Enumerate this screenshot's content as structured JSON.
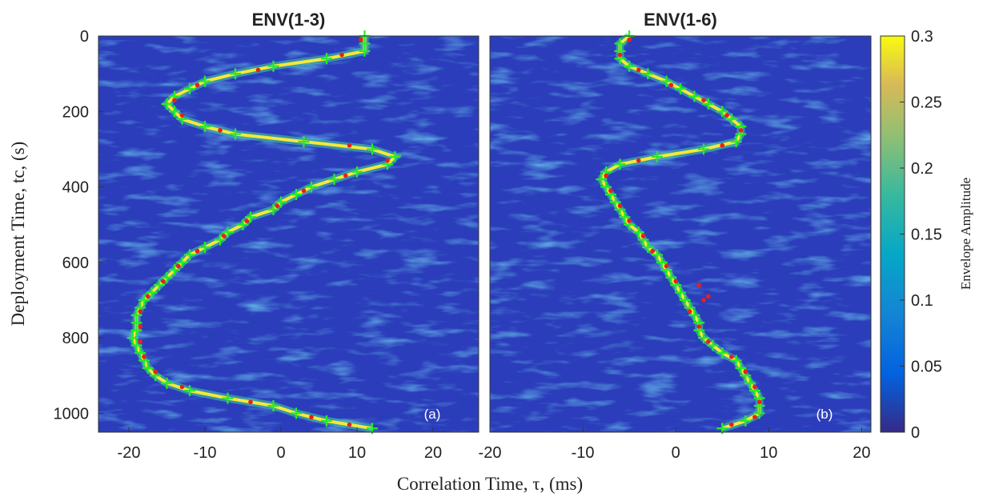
{
  "figure": {
    "xlabel": "Correlation Time, τ, (ms)",
    "ylabel": "Deployment Time, tc, (s)"
  },
  "colorbar": {
    "label": "Envelope Amplitude",
    "lim": [
      0,
      0.3
    ],
    "ticks": [
      0,
      0.05,
      0.1,
      0.15,
      0.2,
      0.25,
      0.3
    ]
  },
  "chart_data": [
    {
      "type": "scatter",
      "title": "ENV(1-3)",
      "annotation": "(a)",
      "xlim": [
        -24,
        26
      ],
      "ylim": [
        0,
        1050
      ],
      "y_reversed": true,
      "xticks": [
        -20,
        -10,
        0,
        10,
        20
      ],
      "yticks": [
        0,
        200,
        400,
        600,
        800,
        1000
      ],
      "series": [
        {
          "marker": "+",
          "color": "#22ee22",
          "x": [
            11,
            11,
            11,
            6,
            -1,
            -6,
            -10,
            -12,
            -14,
            -15,
            -14,
            -13,
            -10,
            -6,
            3,
            12,
            15,
            14,
            10,
            7,
            4,
            2,
            0,
            -1,
            -4,
            -5,
            -7,
            -8,
            -10,
            -12,
            -13,
            -14,
            -15,
            -16,
            -17,
            -18,
            -18.5,
            -19,
            -19,
            -19,
            -19.5,
            -19,
            -18.5,
            -18,
            -17.5,
            -16.5,
            -15,
            -12,
            -7,
            -1,
            2,
            6,
            12
          ],
          "values": [
            0,
            20,
            40,
            60,
            80,
            100,
            120,
            140,
            160,
            180,
            200,
            220,
            240,
            260,
            280,
            300,
            320,
            340,
            360,
            380,
            400,
            420,
            440,
            460,
            480,
            500,
            520,
            540,
            560,
            580,
            600,
            620,
            640,
            660,
            680,
            700,
            720,
            740,
            760,
            780,
            800,
            820,
            840,
            860,
            880,
            900,
            920,
            940,
            960,
            980,
            1000,
            1020,
            1040
          ]
        },
        {
          "marker": "o",
          "color": "#e8201a",
          "x": [
            10.5,
            8,
            -3,
            -11,
            -14,
            -13,
            -8,
            9,
            14,
            8.5,
            3,
            -0.5,
            -4.5,
            -7.5,
            -11,
            -13.5,
            -15.5,
            -17.5,
            -18.5,
            -18.5,
            -18.5,
            -18,
            -16.5,
            -13,
            -4,
            4,
            9
          ],
          "values": [
            10,
            50,
            90,
            130,
            170,
            210,
            250,
            290,
            330,
            370,
            410,
            450,
            490,
            530,
            570,
            610,
            650,
            690,
            730,
            770,
            810,
            850,
            890,
            930,
            970,
            1010,
            1030
          ]
        }
      ]
    },
    {
      "type": "scatter",
      "title": "ENV(1-6)",
      "annotation": "(b)",
      "xlim": [
        -20,
        21
      ],
      "ylim": [
        0,
        1050
      ],
      "y_reversed": true,
      "xticks": [
        -20,
        -10,
        0,
        10,
        20
      ],
      "series": [
        {
          "marker": "+",
          "color": "#22ee22",
          "x": [
            -5,
            -6,
            -6,
            -6,
            -5,
            -3,
            -1,
            0.5,
            2,
            3.5,
            5,
            6,
            7,
            7,
            6.5,
            3,
            -2,
            -6,
            -7.5,
            -8,
            -7.5,
            -7,
            -6.5,
            -6,
            -5.5,
            -5,
            -4,
            -3.5,
            -3,
            -2,
            -1.5,
            -1,
            -0.5,
            0,
            0.5,
            1,
            1.5,
            2,
            2.5,
            2.5,
            3,
            4,
            5,
            6.5,
            7,
            7.5,
            8,
            8.5,
            9,
            9,
            9,
            7.5,
            5
          ],
          "values": [
            0,
            20,
            40,
            60,
            80,
            100,
            120,
            140,
            160,
            180,
            200,
            220,
            240,
            260,
            280,
            300,
            320,
            340,
            360,
            380,
            400,
            420,
            440,
            460,
            480,
            500,
            520,
            540,
            560,
            580,
            600,
            620,
            640,
            660,
            680,
            700,
            720,
            740,
            760,
            780,
            800,
            820,
            840,
            860,
            880,
            900,
            920,
            940,
            960,
            980,
            1000,
            1020,
            1040
          ]
        },
        {
          "marker": "o",
          "color": "#e8201a",
          "x": [
            -5,
            -6,
            -4,
            -0.5,
            3,
            5.5,
            7,
            5,
            -4,
            -7.5,
            -7,
            -6,
            -5,
            -3.5,
            -2.5,
            -1,
            0,
            2.5,
            3.5,
            3,
            1.5,
            2.5,
            3.5,
            6,
            7.5,
            8.5,
            9,
            8.5,
            6
          ],
          "values": [
            10,
            50,
            90,
            130,
            170,
            210,
            250,
            290,
            330,
            370,
            410,
            450,
            490,
            530,
            570,
            610,
            650,
            660,
            690,
            700,
            730,
            770,
            810,
            850,
            890,
            930,
            970,
            1010,
            1030
          ]
        }
      ]
    }
  ]
}
